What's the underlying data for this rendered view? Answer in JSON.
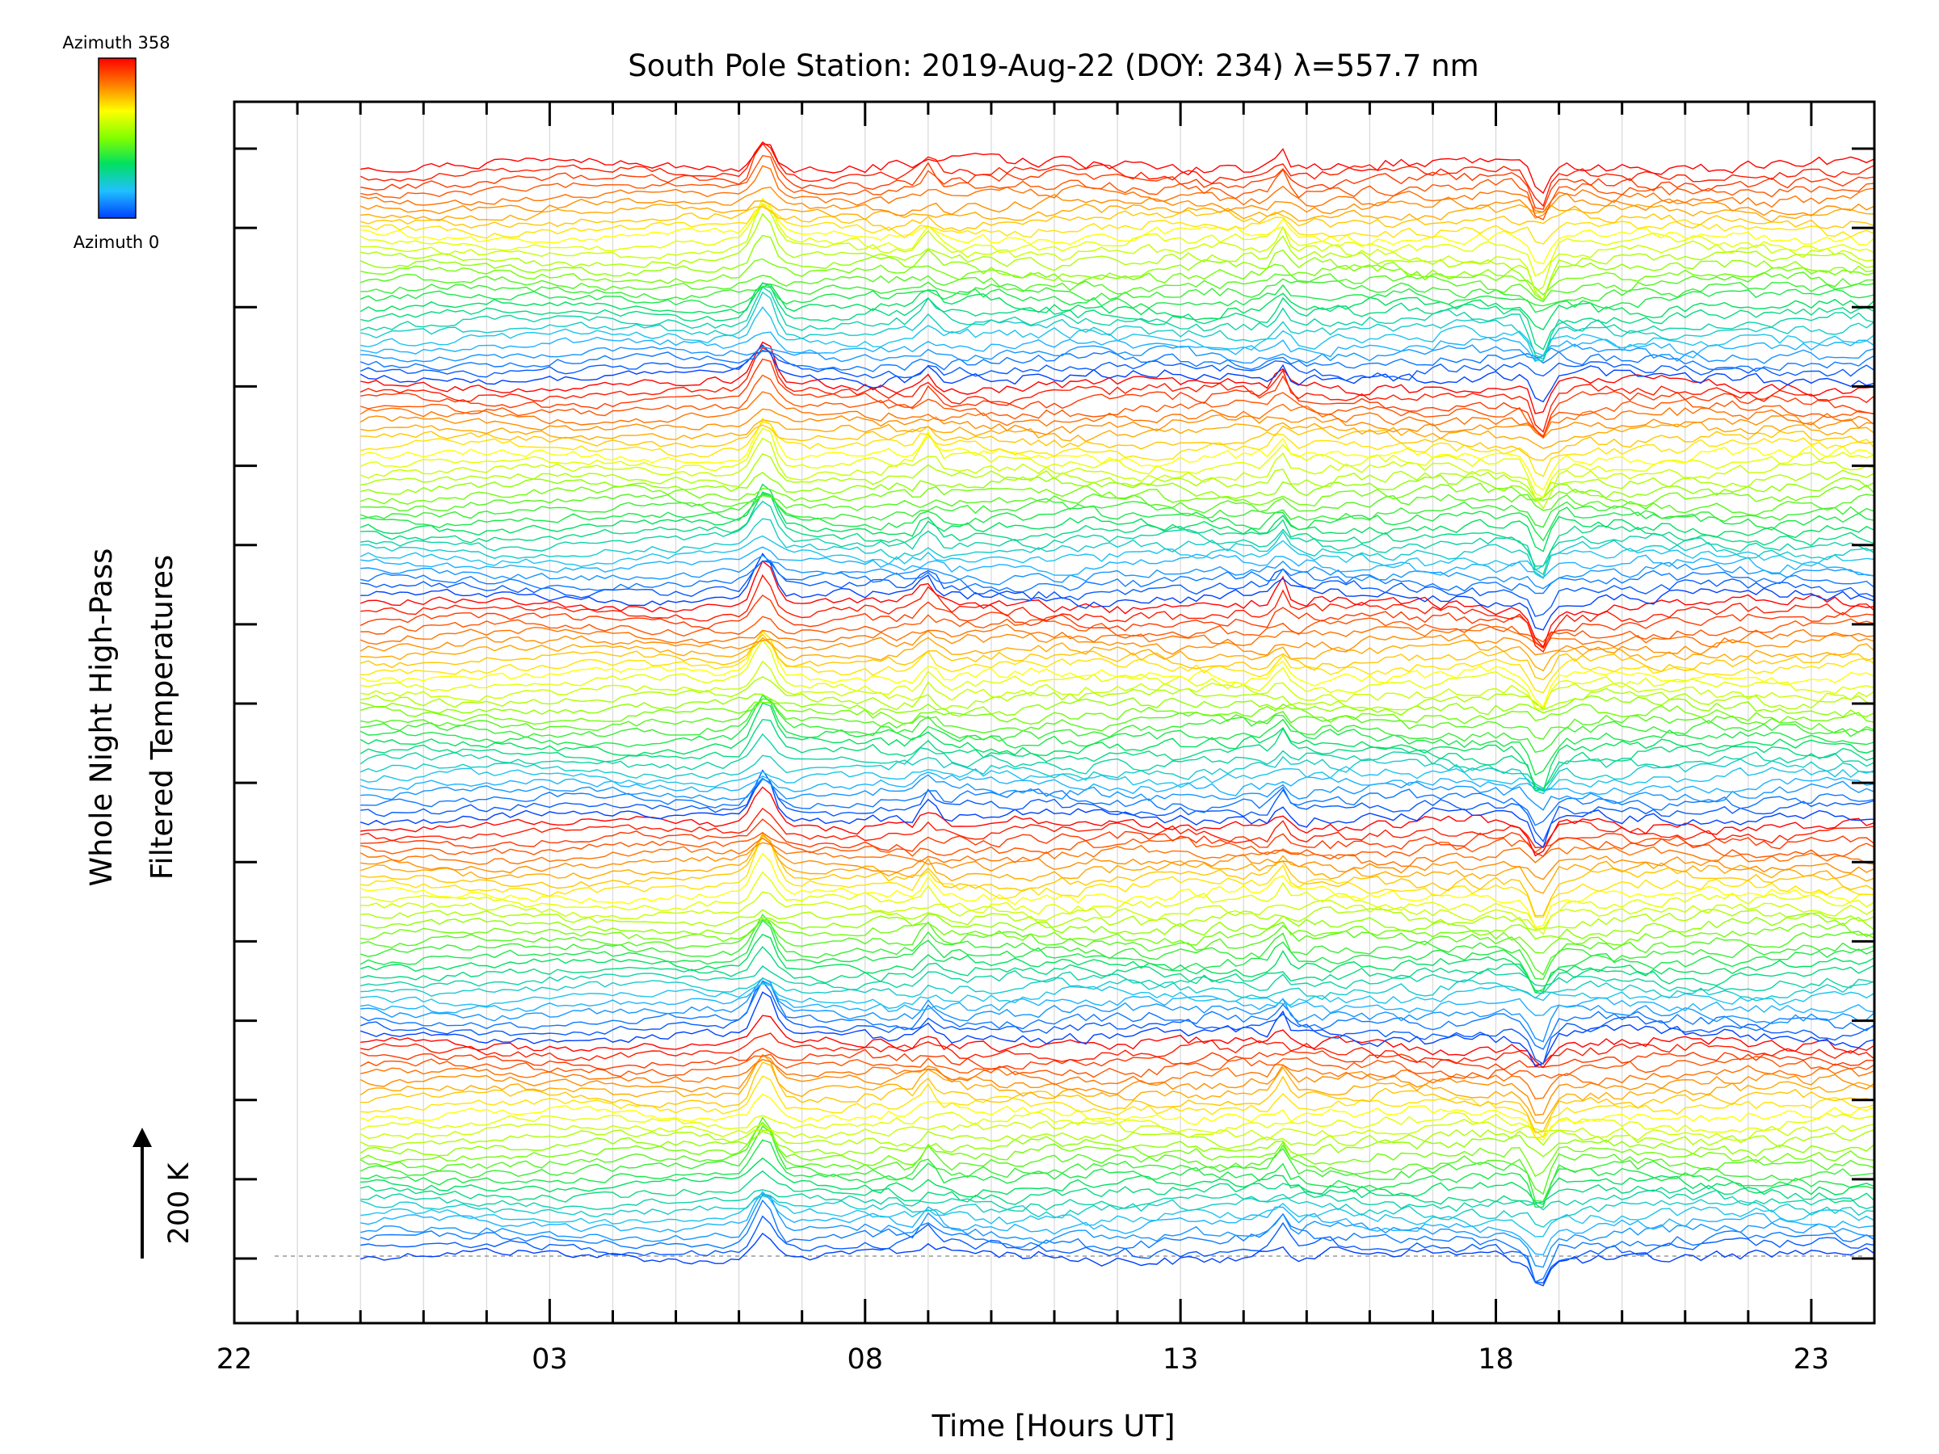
{
  "chart_data": {
    "type": "line",
    "title": "South Pole Station: 2019-Aug-22 (DOY: 234) λ=557.7 nm",
    "xlabel": "Time [Hours UT]",
    "ylabel_line1": "Whole Night High-Pass",
    "ylabel_line2": "Filtered Temperatures",
    "x_tick_labels": [
      "22",
      "03",
      "08",
      "13",
      "18",
      "23"
    ],
    "x_tick_hours": [
      22,
      27,
      32,
      37,
      42,
      47
    ],
    "xlim": [
      22,
      48
    ],
    "data_x_range": [
      24,
      48
    ],
    "colorbar": {
      "label_top": "Azimuth 358",
      "label_bottom": "Azimuth 0",
      "colors": [
        "#ff0000",
        "#ff8000",
        "#ffff00",
        "#80ff00",
        "#00e060",
        "#20c0ff",
        "#0040ff"
      ]
    },
    "scale_bar": {
      "label": "200 K"
    },
    "azimuth_range": [
      0,
      358
    ],
    "traces_per_group": 28,
    "groups": 5,
    "series_description": "stacked temperature traces, one per azimuth, colored by azimuth"
  }
}
